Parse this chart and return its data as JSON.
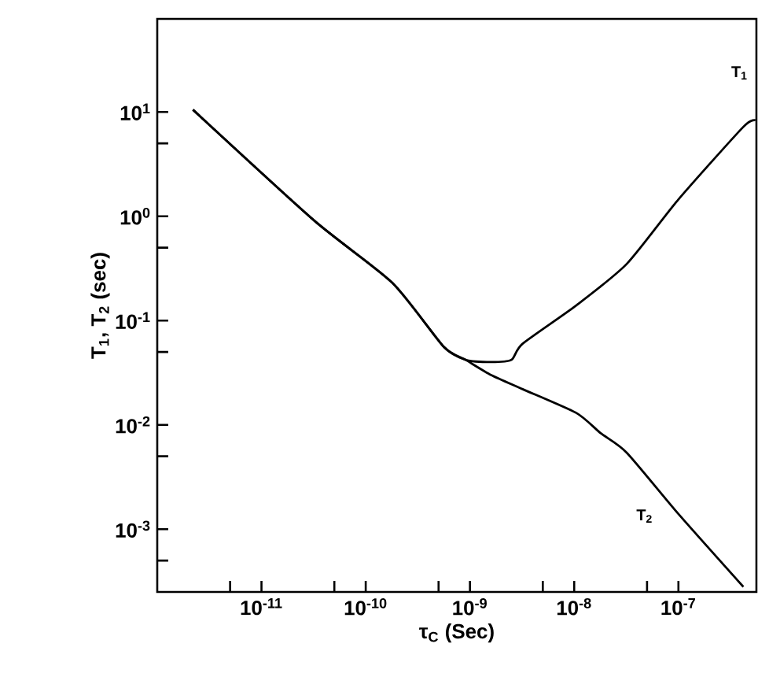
{
  "chart_data": {
    "type": "line",
    "xlabel": "τ$_{C}$ (Sec)",
    "ylabel": "T$_{1}$, T$_{2}$ (sec)",
    "log": "xy",
    "grid": false,
    "legend": false,
    "marker": "none",
    "line_style": "solid",
    "xlim": [
      1e-12,
      5.6e-07
    ],
    "ylim": [
      0.00025,
      78
    ],
    "xticks": [
      {
        "value": 5e-12,
        "label": null
      },
      {
        "value": 1e-11,
        "label": "10$^{-11}$"
      },
      {
        "value": 5e-11,
        "label": null
      },
      {
        "value": 1e-10,
        "label": "10$^{-10}$"
      },
      {
        "value": 5e-10,
        "label": null
      },
      {
        "value": 1e-09,
        "label": "10$^{-9}$"
      },
      {
        "value": 5e-09,
        "label": null
      },
      {
        "value": 1e-08,
        "label": "10$^{-8}$"
      },
      {
        "value": 5e-08,
        "label": null
      },
      {
        "value": 1e-07,
        "label": "10$^{-7}$"
      }
    ],
    "yticks": [
      {
        "value": 0.0005,
        "label": null
      },
      {
        "value": 0.001,
        "label": "10$^{-3}$"
      },
      {
        "value": 0.005,
        "label": null
      },
      {
        "value": 0.01,
        "label": "10$^{-2}$"
      },
      {
        "value": 0.05,
        "label": null
      },
      {
        "value": 0.1,
        "label": "10$^{-1}$"
      },
      {
        "value": 0.5,
        "label": null
      },
      {
        "value": 1,
        "label": "10$^{0}$"
      },
      {
        "value": 5,
        "label": null
      },
      {
        "value": 10,
        "label": "10$^{1}$"
      }
    ],
    "series": [
      {
        "name": "T$_{1}$",
        "color": "#000000",
        "x": [
          2.2e-12,
          3.2e-11,
          1.8e-10,
          5.6e-10,
          9.1e-10,
          1.6e-09,
          2.5e-09,
          3.2e-09,
          1.05e-08,
          3.2e-08,
          1e-07,
          4.2e-07,
          5.5e-07
        ],
        "values": [
          10.5,
          0.91,
          0.23,
          0.056,
          0.042,
          0.04,
          0.042,
          0.06,
          0.14,
          0.35,
          1.45,
          7.2,
          8.3
        ]
      },
      {
        "name": "T$_{2}$",
        "color": "#000000",
        "x": [
          2.2e-12,
          3.2e-11,
          1.8e-10,
          5.6e-10,
          9.1e-10,
          1.6e-09,
          3.2e-09,
          1.05e-08,
          1.8e-08,
          3.2e-08,
          1e-07,
          4.2e-07
        ],
        "values": [
          10.5,
          0.91,
          0.23,
          0.056,
          0.042,
          0.03,
          0.022,
          0.013,
          0.0083,
          0.0054,
          0.0014,
          0.00028
        ]
      }
    ]
  }
}
